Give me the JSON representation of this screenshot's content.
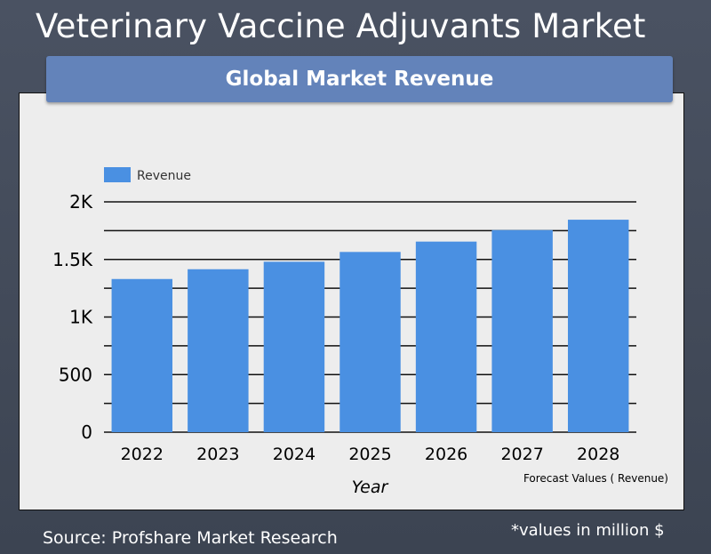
{
  "page": {
    "title": "Veterinary Vaccine Adjuvants Market",
    "source": "Source: Profshare Market Research",
    "units_note": "*values in million $"
  },
  "colors": {
    "background": "#434b5a",
    "header": "#6383ba",
    "bar": "#4a90e2",
    "plot_bg": "#ededed"
  },
  "chart_data": {
    "type": "bar",
    "title": "Global Market Revenue",
    "xlabel": "Year",
    "ylabel": "",
    "categories": [
      "2022",
      "2023",
      "2024",
      "2025",
      "2026",
      "2027",
      "2028"
    ],
    "series": [
      {
        "name": "Revenue",
        "values": [
          1330,
          1415,
          1480,
          1565,
          1655,
          1755,
          1845
        ]
      }
    ],
    "ylim": [
      0,
      2000
    ],
    "yticks": [
      0,
      500,
      1000,
      1500,
      2000
    ],
    "ytick_labels": [
      "0",
      "500",
      "1K",
      "1.5K",
      "2K"
    ],
    "minor_gridlines": [
      250,
      750,
      1250,
      1750
    ],
    "grid": true,
    "legend_position": "top-left",
    "annotation": "Forecast Values ( Revenue)"
  }
}
